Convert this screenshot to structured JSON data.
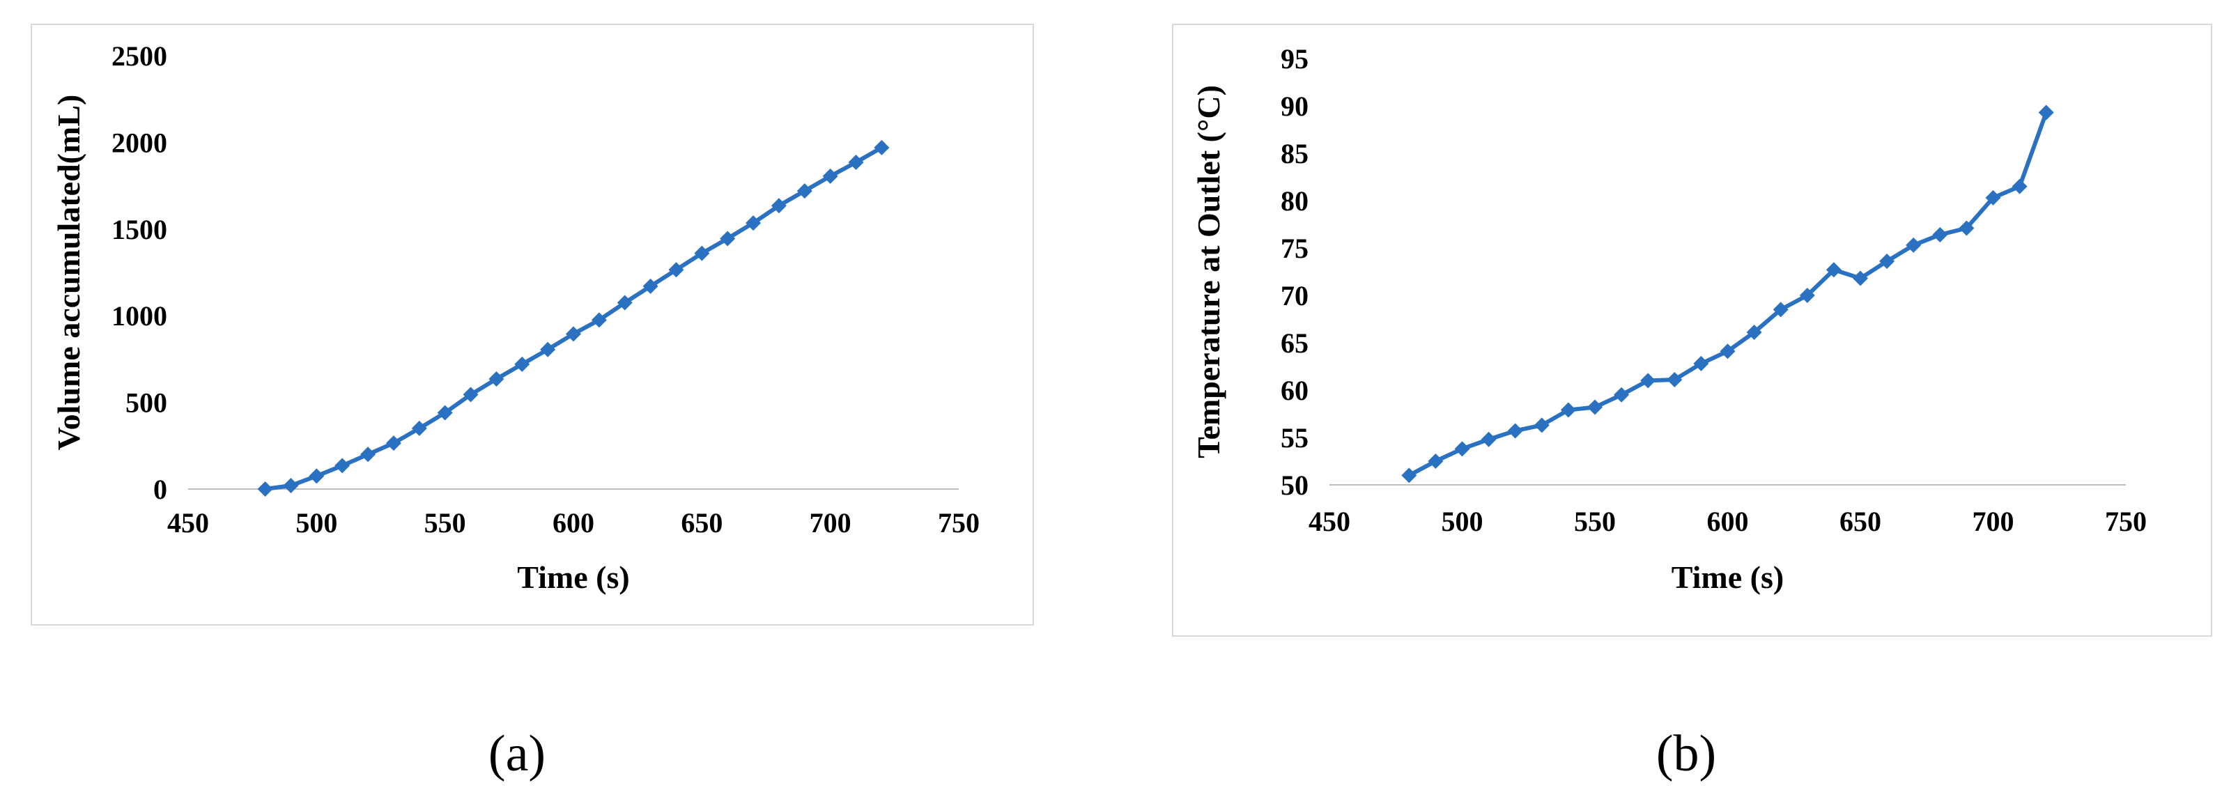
{
  "captions": {
    "a": "(a)",
    "b": "(b)"
  },
  "colors": {
    "series": "#2a71c1",
    "axis": "#bfbfbf"
  },
  "chart_data": [
    {
      "id": "a",
      "type": "line",
      "title": "",
      "xlabel": "Time (s)",
      "ylabel": "Volume accumulated(mL)",
      "xlim": [
        450,
        750
      ],
      "ylim": [
        0,
        2500
      ],
      "xticks": [
        450,
        500,
        550,
        600,
        650,
        700,
        750
      ],
      "yticks": [
        0,
        500,
        1000,
        1500,
        2000,
        2500
      ],
      "grid": false,
      "marker": "diamond",
      "series": [
        {
          "x": [
            480,
            490,
            500,
            510,
            520,
            530,
            540,
            550,
            560,
            570,
            580,
            590,
            600,
            610,
            620,
            630,
            640,
            650,
            660,
            670,
            680,
            690,
            700,
            710,
            720
          ],
          "y": [
            0,
            20,
            75,
            135,
            200,
            265,
            350,
            440,
            545,
            635,
            720,
            805,
            895,
            975,
            1075,
            1170,
            1265,
            1360,
            1445,
            1535,
            1635,
            1720,
            1805,
            1885,
            1970
          ]
        }
      ]
    },
    {
      "id": "b",
      "type": "line",
      "title": "",
      "xlabel": "Time (s)",
      "ylabel": "Temperature at Outlet (°C)",
      "xlim": [
        450,
        750
      ],
      "ylim": [
        50,
        95
      ],
      "xticks": [
        450,
        500,
        550,
        600,
        650,
        700,
        750
      ],
      "yticks": [
        50,
        55,
        60,
        65,
        70,
        75,
        80,
        85,
        90,
        95
      ],
      "grid": false,
      "marker": "diamond",
      "series": [
        {
          "x": [
            480,
            490,
            500,
            510,
            520,
            530,
            540,
            550,
            560,
            570,
            580,
            590,
            600,
            610,
            620,
            630,
            640,
            650,
            660,
            670,
            680,
            690,
            700,
            710,
            720
          ],
          "y": [
            51.0,
            52.5,
            53.8,
            54.8,
            55.7,
            56.3,
            57.9,
            58.2,
            59.5,
            61.0,
            61.1,
            62.8,
            64.1,
            66.1,
            68.5,
            70.0,
            72.7,
            71.8,
            73.6,
            75.3,
            76.4,
            77.1,
            80.3,
            81.5,
            89.3
          ]
        }
      ]
    }
  ]
}
